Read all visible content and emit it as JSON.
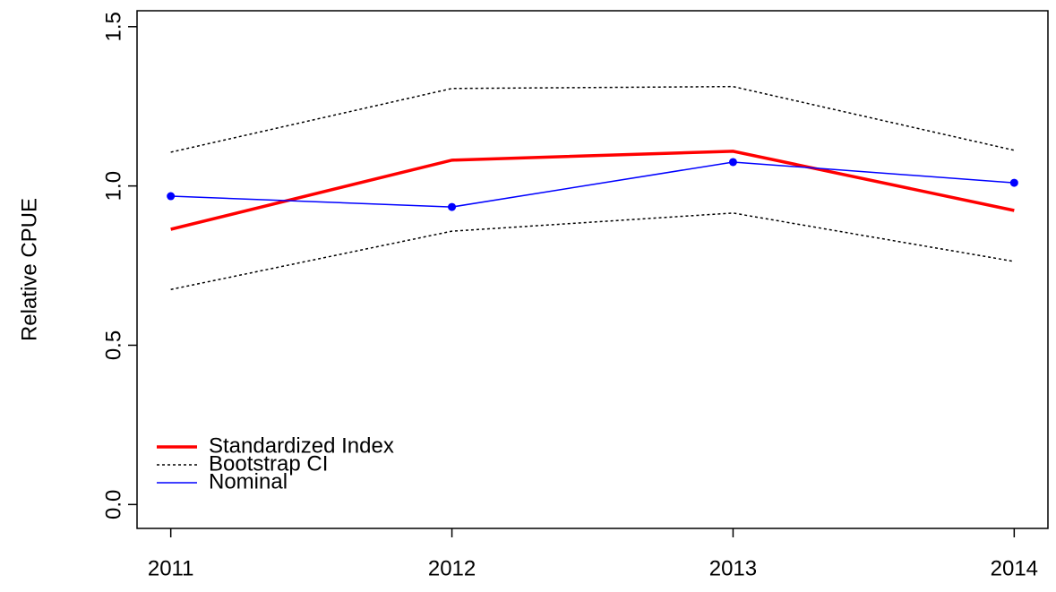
{
  "chart_data": {
    "type": "line",
    "ylabel": "Relative CPUE",
    "x": [
      2011,
      2012,
      2013,
      2014
    ],
    "xlim": [
      2010.88,
      2014.12
    ],
    "xticks": [
      2011,
      2012,
      2013,
      2014
    ],
    "ylim": [
      -0.075,
      1.55
    ],
    "yticks": [
      {
        "value": 0,
        "label": "0.0"
      },
      {
        "value": 0.5,
        "label": "0.5"
      },
      {
        "value": 1,
        "label": "1.0"
      },
      {
        "value": 1.5,
        "label": "1.5"
      }
    ],
    "legend": "bottom-left",
    "series": [
      {
        "name": "Standardized Index",
        "color": "#ff0000",
        "values": [
          0.864,
          1.081,
          1.109,
          0.923
        ]
      },
      {
        "name": "Bootstrap CI",
        "color": "#000000",
        "dashed": true,
        "upper": [
          1.106,
          1.306,
          1.312,
          1.112
        ],
        "lower": [
          0.675,
          0.858,
          0.915,
          0.763
        ]
      },
      {
        "name": "Nominal",
        "color": "#0000ff",
        "points": true,
        "values": [
          0.968,
          0.934,
          1.075,
          1.01
        ]
      }
    ]
  }
}
